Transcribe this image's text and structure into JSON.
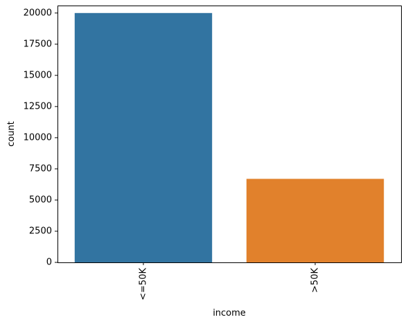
{
  "chart_data": {
    "type": "bar",
    "categories": [
      "<=50K",
      ">50K"
    ],
    "values": [
      20000,
      6700
    ],
    "colors": [
      "#3274a1",
      "#e1812c"
    ],
    "title": "",
    "xlabel": "income",
    "ylabel": "count",
    "ylim": [
      0,
      20600
    ],
    "yticks": [
      0,
      2500,
      5000,
      7500,
      10000,
      12500,
      15000,
      17500,
      20000
    ],
    "ytick_labels": [
      "0",
      "2500",
      "5000",
      "7500",
      "10000",
      "12500",
      "15000",
      "17500",
      "20000"
    ],
    "grid": false,
    "legend": "none",
    "xtick_rotation": "vertical"
  }
}
